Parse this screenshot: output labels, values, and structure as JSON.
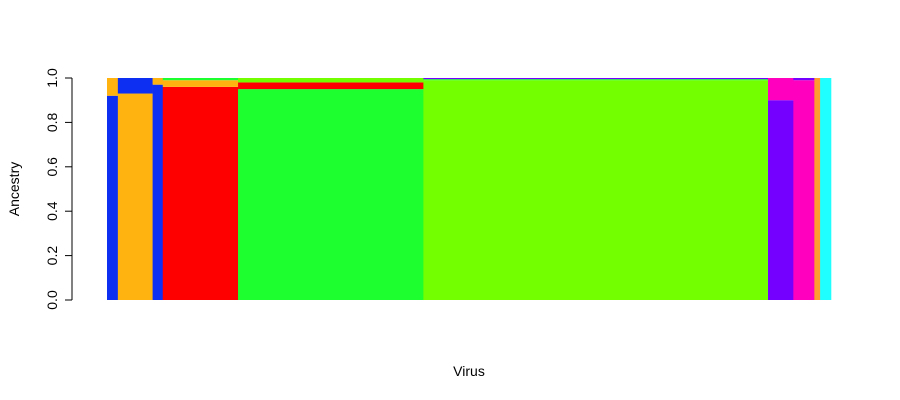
{
  "chart_data": {
    "type": "bar",
    "subtype": "stacked-ancestry-barplot",
    "xlabel": "Virus",
    "ylabel": "Ancestry",
    "ylim": [
      0,
      1
    ],
    "yticks": [
      {
        "value": 0.0,
        "label": "0.0"
      },
      {
        "value": 0.2,
        "label": "0.2"
      },
      {
        "value": 0.4,
        "label": "0.4"
      },
      {
        "value": 0.6,
        "label": "0.6"
      },
      {
        "value": 0.8,
        "label": "0.8"
      },
      {
        "value": 1.0,
        "label": "1.0"
      }
    ],
    "grid": false,
    "legend": "none",
    "n_samples": 1000,
    "clusters": [
      {
        "id": 1,
        "color": "#0d2ff2"
      },
      {
        "id": 2,
        "color": "#ffb310"
      },
      {
        "id": 3,
        "color": "#ff0000"
      },
      {
        "id": 4,
        "color": "#1eff30"
      },
      {
        "id": 5,
        "color": "#73ff00"
      },
      {
        "id": 6,
        "color": "#7400ff"
      },
      {
        "id": 7,
        "color": "#ff00bf"
      },
      {
        "id": 8,
        "color": "#ff9a2e"
      },
      {
        "id": 9,
        "color": "#20ffff"
      }
    ],
    "blocks": [
      {
        "dominant": 1,
        "start": 0,
        "end": 15,
        "ancestry": {
          "1": 0.92,
          "2": 0.08
        }
      },
      {
        "dominant": 2,
        "start": 15,
        "end": 63,
        "ancestry": {
          "2": 0.93,
          "1": 0.07
        }
      },
      {
        "dominant": 1,
        "start": 63,
        "end": 77,
        "ancestry": {
          "1": 0.97,
          "2": 0.03
        }
      },
      {
        "dominant": 3,
        "start": 77,
        "end": 181,
        "ancestry": {
          "3": 0.96,
          "2": 0.03,
          "4": 0.01
        }
      },
      {
        "dominant": 4,
        "start": 181,
        "end": 437,
        "ancestry": {
          "4": 0.95,
          "3": 0.03,
          "5": 0.02
        }
      },
      {
        "dominant": 5,
        "start": 437,
        "end": 913,
        "ancestry": {
          "5": 0.99,
          "4": 0.005,
          "6": 0.005
        }
      },
      {
        "dominant": 6,
        "start": 913,
        "end": 948,
        "ancestry": {
          "6": 0.9,
          "7": 0.1
        }
      },
      {
        "dominant": 7,
        "start": 948,
        "end": 977,
        "ancestry": {
          "7": 0.99,
          "6": 0.01
        }
      },
      {
        "dominant": 8,
        "start": 977,
        "end": 985,
        "ancestry": {
          "8": 1.0
        }
      },
      {
        "dominant": 9,
        "start": 985,
        "end": 1000,
        "ancestry": {
          "9": 1.0
        }
      }
    ]
  }
}
